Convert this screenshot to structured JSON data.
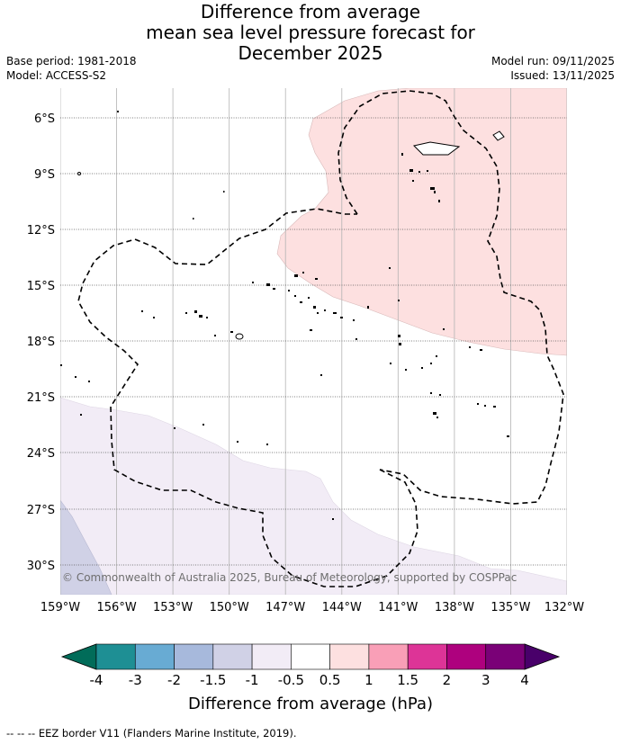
{
  "title": {
    "line1": "Difference from average",
    "line2": "mean sea level pressure forecast for",
    "line3": "December 2025"
  },
  "meta": {
    "base_period": "Base period: 1981-2018",
    "model": "Model: ACCESS-S2",
    "model_run": "Model run: 09/11/2025",
    "issued": "Issued: 13/11/2025"
  },
  "map": {
    "lat_labels": [
      "6°S",
      "9°S",
      "12°S",
      "15°S",
      "18°S",
      "21°S",
      "24°S",
      "27°S",
      "30°S"
    ],
    "lon_labels": [
      "159°W",
      "156°W",
      "153°W",
      "150°W",
      "147°W",
      "144°W",
      "141°W",
      "138°W",
      "135°W",
      "132°W"
    ],
    "copyright": "© Commonwealth of Australia 2025, Bureau of Meteorology, supported by COSPPac"
  },
  "legend": {
    "ticks": [
      "-4",
      "-3",
      "-2",
      "-1.5",
      "-1",
      "-0.5",
      "0.5",
      "1",
      "1.5",
      "2",
      "3",
      "4"
    ],
    "colors": [
      "#1e8f94",
      "#68abd3",
      "#a7b9dc",
      "#d0d1e6",
      "#f2ecf6",
      "#ffffff",
      "#fde0e0",
      "#f99fb7",
      "#dd3497",
      "#ae017e",
      "#7a0177"
    ],
    "under_color": "#016c59",
    "over_color": "#49006a",
    "label": "Difference from average (hPa)"
  },
  "footer": "--  --  -- EEZ border V11 (Flanders Marine Institute, 2019)."
}
